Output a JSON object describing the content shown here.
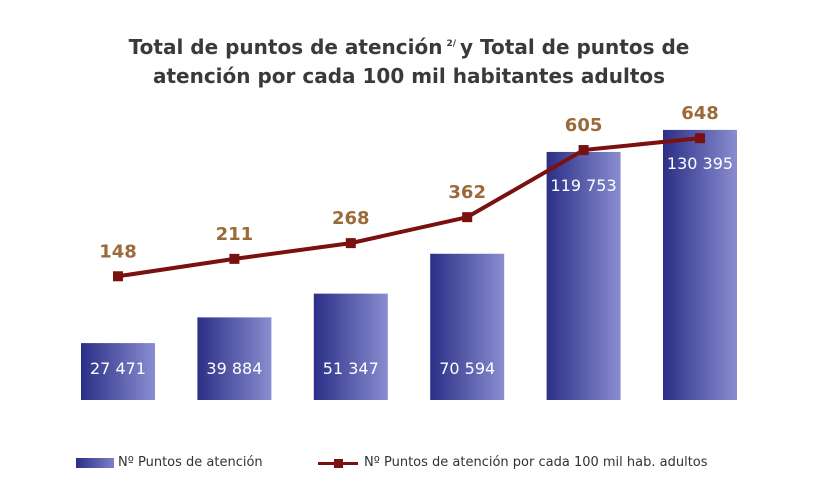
{
  "title": {
    "line1": "Total de puntos de atención",
    "footnote": "2/",
    "line1b": "y Total de puntos de",
    "line2": "atención por cada 100 mil habitantes adultos"
  },
  "colors": {
    "bar_dark": "#2b2f86",
    "bar_light": "#8a8dd0",
    "line": "#7a1010",
    "line_label": "#9c6a3a",
    "bar_label": "#ffffff"
  },
  "chart_data": {
    "type": "bar",
    "categories": [
      "",
      "",
      "",
      "",
      "",
      ""
    ],
    "series": [
      {
        "name": "Nº Puntos de atención",
        "type": "bar",
        "values": [
          27471,
          39884,
          51347,
          70594,
          119753,
          130395
        ],
        "labels": [
          "27 471",
          "39 884",
          "51 347",
          "70 594",
          "119 753",
          "130 395"
        ]
      },
      {
        "name": "Nº Puntos de atención por cada 100 mil hab. adultos",
        "type": "line",
        "values": [
          148,
          211,
          268,
          362,
          605,
          648
        ],
        "labels": [
          "148",
          "211",
          "268",
          "362",
          "605",
          "648"
        ]
      }
    ],
    "bar_ylim": [
      0,
      140000
    ],
    "line_ylim": [
      -300,
      750
    ],
    "legend": "bottom",
    "grid": false
  },
  "legend": {
    "bar_label": "Nº Puntos de atención",
    "line_label": "Nº Puntos de atención por cada 100 mil hab. adultos"
  }
}
